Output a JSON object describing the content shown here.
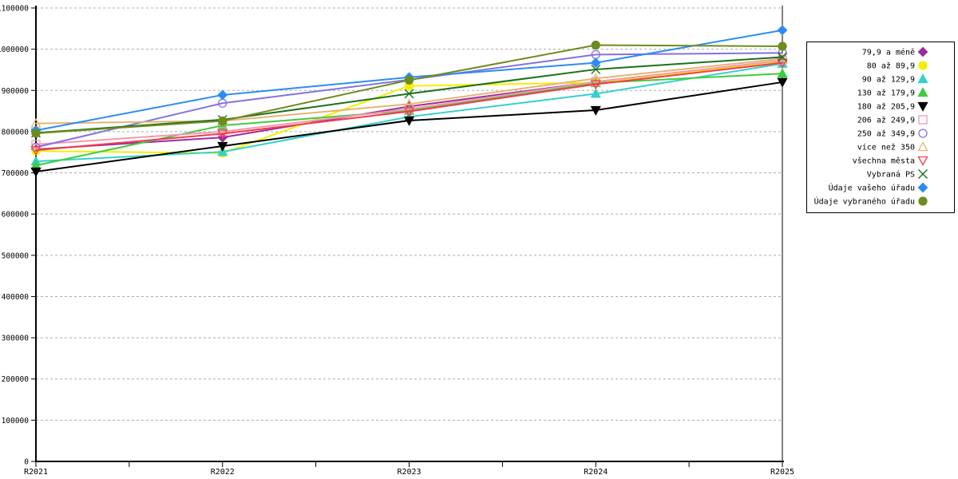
{
  "chart_data": {
    "type": "line",
    "title": "",
    "xlabel": "",
    "ylabel": "",
    "x_categories": [
      "R2021",
      "R2022",
      "R2023",
      "R2024",
      "R2025"
    ],
    "y_axis": {
      "min": 0,
      "max": 1100000,
      "step": 100000,
      "tick_labels": [
        "0",
        "100000",
        "200000",
        "300000",
        "400000",
        "500000",
        "600000",
        "700000",
        "800000",
        "900000",
        "1000000",
        "1100000"
      ]
    },
    "grid": "horizontal-dashed",
    "grid_color": "#ABABAB",
    "legend_position": "right",
    "series": [
      {
        "name": "79,9 a méně",
        "color": "#9C2E9C",
        "marker": "diamond",
        "filled": true,
        "values": [
          757000,
          786000,
          861000,
          921000,
          972000
        ]
      },
      {
        "name": "80 až 89,9",
        "color": "#F0F000",
        "marker": "circle",
        "filled": true,
        "values": [
          753000,
          748000,
          911000,
          919000,
          969000
        ]
      },
      {
        "name": "90 až 129,9",
        "color": "#35D0CC",
        "marker": "triangle-up",
        "filled": true,
        "values": [
          728000,
          751000,
          836000,
          892000,
          965000
        ]
      },
      {
        "name": "130 až 179,9",
        "color": "#3ECC3E",
        "marker": "triangle-up",
        "filled": true,
        "values": [
          718000,
          815000,
          851000,
          918000,
          941000
        ]
      },
      {
        "name": "180 až 205,9",
        "color": "#000000",
        "marker": "triangle-down",
        "filled": true,
        "values": [
          703000,
          765000,
          827000,
          852000,
          920000
        ]
      },
      {
        "name": "206 až 249,9",
        "color": "#F498AE",
        "marker": "square",
        "filled": false,
        "values": [
          769000,
          800000,
          855000,
          921000,
          973000
        ]
      },
      {
        "name": "250 až 349,9",
        "color": "#8472DC",
        "marker": "circle",
        "filled": false,
        "values": [
          762000,
          869000,
          926000,
          987000,
          991000
        ]
      },
      {
        "name": "více než 350",
        "color": "#E4B474",
        "marker": "triangle-up",
        "filled": false,
        "values": [
          820000,
          826000,
          867000,
          929000,
          977000
        ]
      },
      {
        "name": "všechna města",
        "color": "#F23B50",
        "marker": "triangle-down",
        "filled": false,
        "values": [
          755000,
          795000,
          849000,
          915000,
          967000
        ]
      },
      {
        "name": "Vybraná PS",
        "color": "#1C701C",
        "marker": "x-cross",
        "filled": false,
        "values": [
          797000,
          829000,
          892000,
          951000,
          981000
        ]
      },
      {
        "name": "Údaje vašeho úřadu",
        "color": "#2D8CF0",
        "marker": "diamond",
        "filled": true,
        "values": [
          803000,
          889000,
          932000,
          967000,
          1046000
        ]
      },
      {
        "name": "Údaje vybraného úřadu",
        "color": "#6E8C1E",
        "marker": "circle",
        "filled": true,
        "values": [
          796000,
          826000,
          925000,
          1010000,
          1007000
        ]
      }
    ]
  }
}
